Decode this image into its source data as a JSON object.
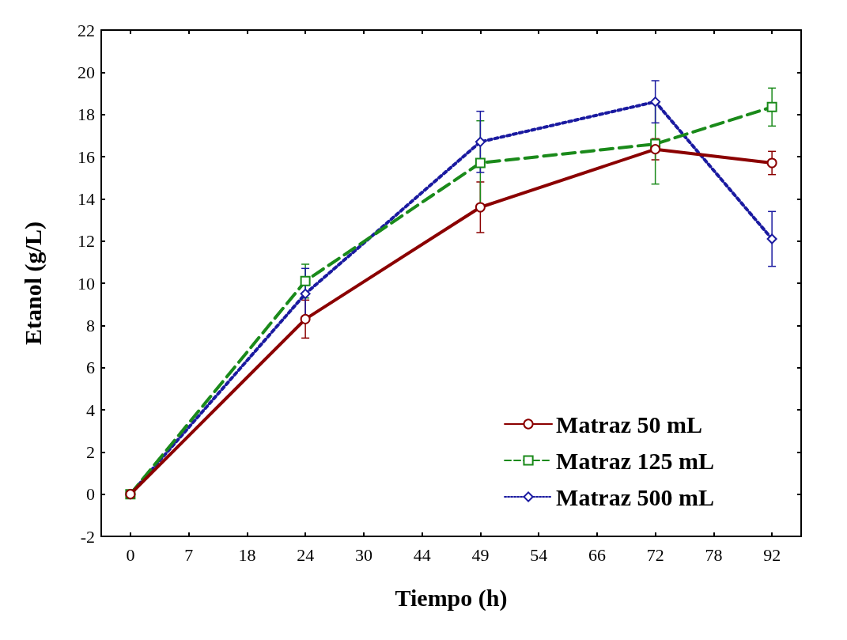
{
  "chart_data": {
    "type": "line",
    "xlabel": "Tiempo (h)",
    "ylabel": "Etanol (g/L)",
    "categories": [
      "0",
      "7",
      "18",
      "24",
      "30",
      "44",
      "49",
      "54",
      "66",
      "72",
      "78",
      "92"
    ],
    "ylim": [
      -2,
      22
    ],
    "yticks": [
      -2,
      0,
      2,
      4,
      6,
      8,
      10,
      12,
      14,
      16,
      18,
      20,
      22
    ],
    "grid": false,
    "legend": "bottom right",
    "series": [
      {
        "name": "Matraz 50 mL",
        "color": "#8b0000",
        "marker": "circle",
        "line_style": "solid",
        "values": [
          0,
          null,
          null,
          8.3,
          null,
          null,
          13.6,
          null,
          null,
          16.35,
          null,
          15.7
        ],
        "errors": [
          null,
          null,
          null,
          0.9,
          null,
          null,
          1.2,
          null,
          null,
          0.5,
          null,
          0.55
        ]
      },
      {
        "name": "Matraz 125 mL",
        "color": "#1a8a1a",
        "marker": "square",
        "line_style": "dashed",
        "values": [
          0,
          null,
          null,
          10.1,
          null,
          null,
          15.7,
          null,
          null,
          16.6,
          null,
          18.35
        ],
        "errors": [
          null,
          null,
          null,
          0.8,
          null,
          null,
          2.0,
          null,
          null,
          1.9,
          null,
          0.9
        ]
      },
      {
        "name": "Matraz 500 mL",
        "color": "#1a1aa0",
        "marker": "diamond",
        "line_style": "dotted",
        "values": [
          0,
          null,
          null,
          9.5,
          null,
          null,
          16.7,
          null,
          null,
          18.6,
          null,
          12.1
        ],
        "errors": [
          null,
          null,
          null,
          1.2,
          null,
          null,
          1.45,
          null,
          null,
          1.0,
          null,
          1.3
        ]
      }
    ]
  }
}
